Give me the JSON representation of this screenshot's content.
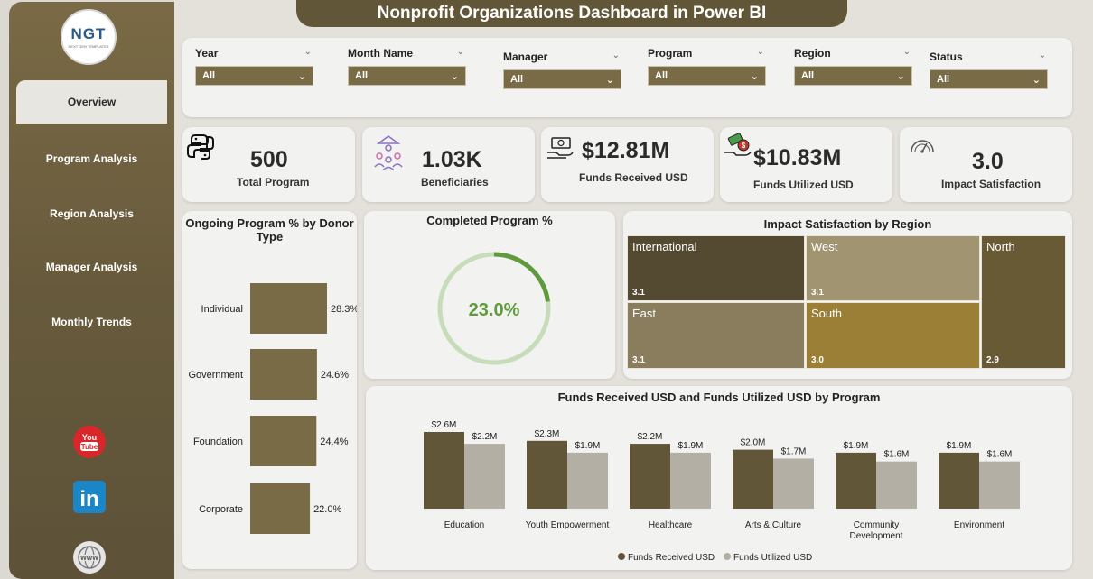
{
  "title": "Nonprofit Organizations Dashboard in Power BI",
  "logo": {
    "text": "NGT",
    "subtext": "NEXT GEN TEMPLATES"
  },
  "nav": [
    {
      "label": "Overview"
    },
    {
      "label": "Program Analysis"
    },
    {
      "label": "Region Analysis"
    },
    {
      "label": "Manager Analysis"
    },
    {
      "label": "Monthly Trends"
    }
  ],
  "social": {
    "youtube": "You Tube",
    "linkedin": "in",
    "web": "WWW"
  },
  "filters": [
    {
      "label": "Year",
      "value": "All"
    },
    {
      "label": "Month Name",
      "value": "All"
    },
    {
      "label": "Manager",
      "value": "All"
    },
    {
      "label": "Program",
      "value": "All"
    },
    {
      "label": "Region",
      "value": "All"
    },
    {
      "label": "Status",
      "value": "All"
    }
  ],
  "kpis": [
    {
      "value": "500",
      "label": "Total Program",
      "icon": "python-icon"
    },
    {
      "value": "1.03K",
      "label": "Beneficiaries",
      "icon": "people-group-icon"
    },
    {
      "value": "$12.81M",
      "label": "Funds Received USD",
      "icon": "money-hand-icon"
    },
    {
      "value": "$10.83M",
      "label": "Funds Utilized USD",
      "icon": "money-bag-hand-icon"
    },
    {
      "value": "3.0",
      "label": "Impact Satisfaction",
      "icon": "gauge-icon"
    }
  ],
  "colors": {
    "dark": "#625638",
    "bar": "#7a6b47",
    "light_bar": "#b3afa5",
    "accent_green": "#5f9a3c"
  },
  "chart_data": [
    {
      "type": "bar",
      "title": "Ongoing Program % by Donor Type",
      "orientation": "horizontal",
      "categories": [
        "Individual",
        "Government",
        "Foundation",
        "Corporate"
      ],
      "values": [
        28.3,
        24.6,
        24.4,
        22.0
      ],
      "value_labels": [
        "28.3%",
        "24.6%",
        "24.4%",
        "22.0%"
      ]
    },
    {
      "type": "pie",
      "subtype": "donut",
      "title": "Completed Program %",
      "value": 23.0,
      "value_label": "23.0%"
    },
    {
      "type": "heatmap",
      "subtype": "treemap",
      "title": "Impact Satisfaction by Region",
      "categories": [
        "International",
        "West",
        "North",
        "East",
        "South"
      ],
      "values": [
        3.1,
        3.1,
        2.9,
        3.1,
        3.0
      ],
      "value_labels": [
        "3.1",
        "3.1",
        "2.9",
        "3.1",
        "3.0"
      ]
    },
    {
      "type": "bar",
      "title": "Funds Received USD and Funds Utilized USD by Program",
      "categories": [
        "Education",
        "Youth Empowerment",
        "Healthcare",
        "Arts & Culture",
        "Community Development",
        "Environment"
      ],
      "series": [
        {
          "name": "Funds Received USD",
          "values": [
            2.6,
            2.3,
            2.2,
            2.0,
            1.9,
            1.9
          ],
          "labels": [
            "$2.6M",
            "$2.3M",
            "$2.2M",
            "$2.0M",
            "$1.9M",
            "$1.9M"
          ]
        },
        {
          "name": "Funds Utilized USD",
          "values": [
            2.2,
            1.9,
            1.9,
            1.7,
            1.6,
            1.6
          ],
          "labels": [
            "$2.2M",
            "$1.9M",
            "$1.9M",
            "$1.7M",
            "$1.6M",
            "$1.6M"
          ]
        }
      ],
      "legend": "bottom"
    }
  ]
}
